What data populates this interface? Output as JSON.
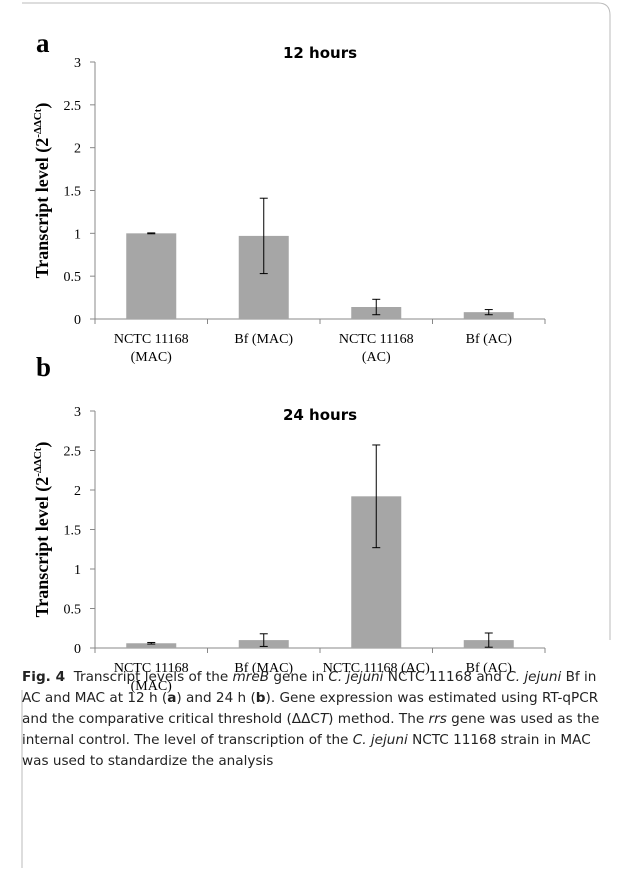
{
  "chart_data": [
    {
      "type": "bar",
      "panel": "a",
      "title": "12 hours",
      "ylabel": [
        "Transcript level (2",
        "-ΔΔCt",
        ")"
      ],
      "categories": [
        "NCTC 11168\n(MAC)",
        "Bf (MAC)",
        "NCTC 11168\n(AC)",
        "Bf (AC)"
      ],
      "values": [
        1.0,
        0.97,
        0.14,
        0.08
      ],
      "errors": [
        0.005,
        0.44,
        0.09,
        0.03
      ],
      "color": "#a6a6a6",
      "ylim": [
        0,
        3
      ],
      "yticks": [
        0,
        0.5,
        1,
        1.5,
        2,
        2.5,
        3
      ],
      "grid": false
    },
    {
      "type": "bar",
      "panel": "b",
      "title": "24 hours",
      "ylabel": [
        "Transcript level (2",
        "-ΔΔCt",
        ")"
      ],
      "categories": [
        "NCTC 11168\n(MAC)",
        "Bf (MAC)",
        "NCTC 11168 (AC)",
        "Bf (AC)"
      ],
      "values": [
        0.06,
        0.1,
        1.92,
        0.1
      ],
      "errors": [
        0.01,
        0.08,
        0.65,
        0.09
      ],
      "color": "#a6a6a6",
      "ylim": [
        0,
        3
      ],
      "yticks": [
        0,
        0.5,
        1,
        1.5,
        2,
        2.5,
        3
      ],
      "grid": false
    }
  ],
  "figure": {
    "label": "Fig. 4",
    "caption": [
      "Transcript levels of the ",
      "mreB",
      " gene in ",
      "C. jejuni",
      " NCTC 11168 and ",
      "C. jejuni",
      " Bf in AC and MAC at 12 h (",
      "a",
      ") and 24 h (",
      "b",
      "). Gene expression was estimated using RT-qPCR and the comparative critical threshold (ΔΔC",
      "T",
      ") method. The ",
      "rrs",
      " gene was used as the internal control. The level of transcription of the ",
      "C. jejuni",
      " NCTC 11168 strain in MAC was used to standardize the analysis"
    ]
  }
}
